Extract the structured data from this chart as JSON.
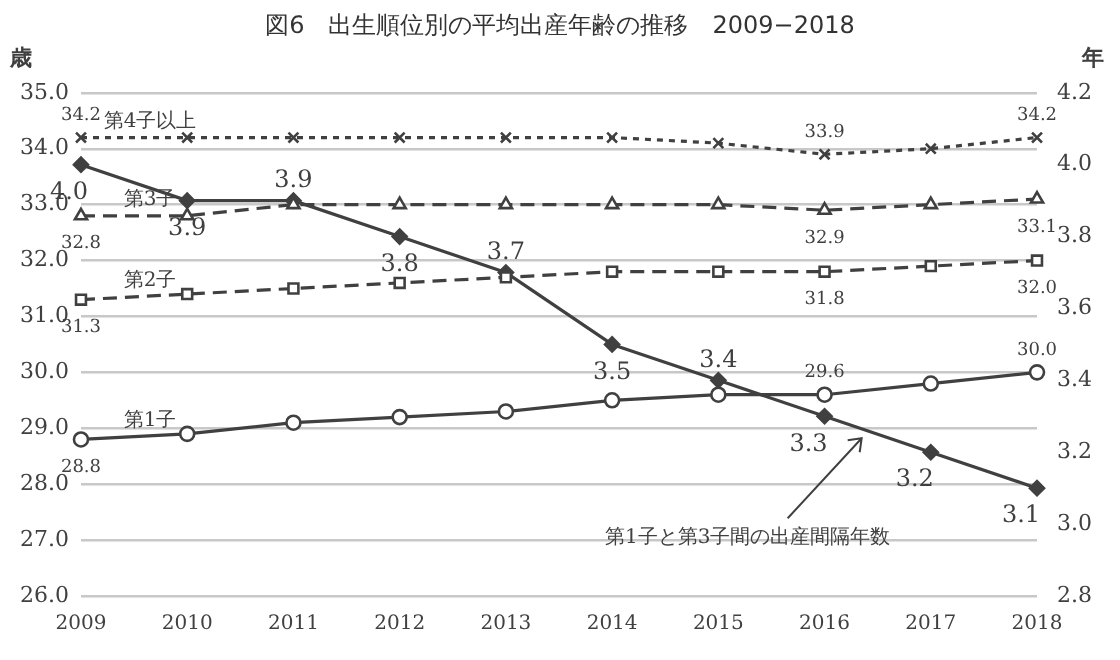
{
  "chart_data": {
    "type": "line",
    "title": "図6　出生順位別の平均出産年齢の推移　2009−2018",
    "ylabel": "歳",
    "y2label": "年",
    "categories": [
      "2009",
      "2010",
      "2011",
      "2012",
      "2013",
      "2014",
      "2015",
      "2016",
      "2017",
      "2018"
    ],
    "ylim": [
      26,
      35
    ],
    "yticks": [
      {
        "value": 26,
        "label": "26.0"
      },
      {
        "value": 27,
        "label": "27.0"
      },
      {
        "value": 28,
        "label": "28.0"
      },
      {
        "value": 29,
        "label": "29.0"
      },
      {
        "value": 30,
        "label": "30.0"
      },
      {
        "value": 31,
        "label": "31.0"
      },
      {
        "value": 32,
        "label": "32.0"
      },
      {
        "value": 33,
        "label": "33.0"
      },
      {
        "value": 34,
        "label": "34.0"
      },
      {
        "value": 35,
        "label": "35.0"
      }
    ],
    "y2lim": [
      2.8,
      4.2
    ],
    "y2ticks": [
      {
        "value": 2.8,
        "label": "2.8"
      },
      {
        "value": 3.0,
        "label": "3.0"
      },
      {
        "value": 3.2,
        "label": "3.2"
      },
      {
        "value": 3.4,
        "label": "3.4"
      },
      {
        "value": 3.6,
        "label": "3.6"
      },
      {
        "value": 3.8,
        "label": "3.8"
      },
      {
        "value": 4.0,
        "label": "4.0"
      },
      {
        "value": 4.2,
        "label": "4.2"
      }
    ],
    "grid": "y",
    "legend": false,
    "series": [
      {
        "name": "第4子以上",
        "color": "#404040",
        "marker": "cross",
        "line_style": "dotted",
        "values": [
          34.2,
          34.2,
          34.2,
          34.2,
          34.2,
          34.2,
          34.1,
          33.9,
          34.0,
          34.2
        ],
        "value_labels": [
          "34.2",
          null,
          null,
          null,
          null,
          null,
          null,
          "33.9",
          null,
          "34.2"
        ]
      },
      {
        "name": "第3子",
        "color": "#404040",
        "marker": "triangle",
        "line_style": "dashed",
        "values": [
          32.8,
          32.8,
          33.0,
          33.0,
          33.0,
          33.0,
          33.0,
          32.9,
          33.0,
          33.1
        ],
        "value_labels": [
          "32.8",
          null,
          null,
          null,
          null,
          null,
          null,
          "32.9",
          null,
          "33.1"
        ]
      },
      {
        "name": "第2子",
        "color": "#404040",
        "marker": "square",
        "line_style": "dashed",
        "values": [
          31.3,
          31.4,
          31.5,
          31.6,
          31.7,
          31.8,
          31.8,
          31.8,
          31.9,
          32.0
        ],
        "value_labels": [
          "31.3",
          null,
          null,
          null,
          null,
          null,
          null,
          "31.8",
          null,
          "32.0"
        ]
      },
      {
        "name": "第1子",
        "color": "#404040",
        "marker": "circle",
        "line_style": "solid",
        "values": [
          28.8,
          28.9,
          29.1,
          29.2,
          29.3,
          29.5,
          29.6,
          29.6,
          29.8,
          30.0
        ],
        "value_labels": [
          "28.8",
          null,
          null,
          null,
          null,
          null,
          null,
          "29.6",
          null,
          "30.0"
        ]
      },
      {
        "name": "第1子と第3子間の出産間隔年数",
        "color": "#404040",
        "marker": "diamond",
        "line_style": "solid",
        "axis": "y2",
        "values": [
          4.0,
          3.9,
          3.9,
          3.8,
          3.7,
          3.5,
          3.4,
          3.3,
          3.2,
          3.1
        ],
        "value_labels": [
          "4.0",
          "3.9",
          "3.9",
          "3.8",
          "3.7",
          "3.5",
          "3.4",
          "3.3",
          "3.2",
          "3.1"
        ]
      }
    ]
  }
}
